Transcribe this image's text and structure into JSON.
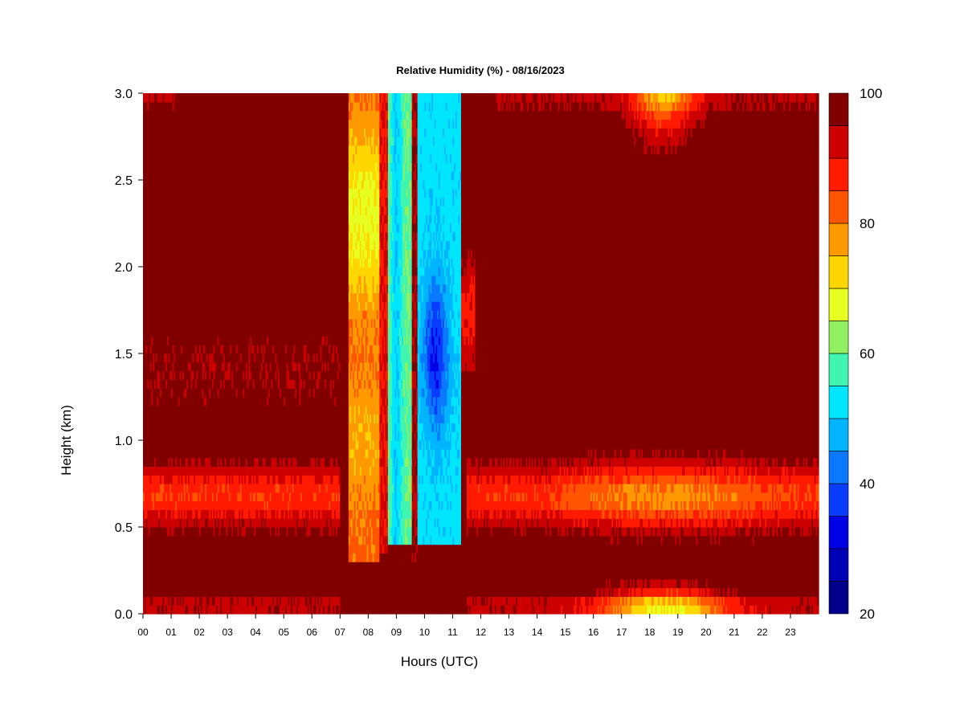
{
  "chart_data": {
    "type": "heatmap",
    "title": "Relative Humidity (%) - 08/16/2023",
    "xlabel": "Hours (UTC)",
    "ylabel": "Height (km)",
    "x_ticks": [
      "00",
      "01",
      "02",
      "03",
      "04",
      "05",
      "06",
      "07",
      "08",
      "09",
      "10",
      "11",
      "12",
      "13",
      "14",
      "15",
      "16",
      "17",
      "18",
      "19",
      "20",
      "21",
      "22",
      "23"
    ],
    "x_range": [
      0,
      24
    ],
    "y_ticks": [
      "0.0",
      "0.5",
      "1.0",
      "1.5",
      "2.0",
      "2.5",
      "3.0"
    ],
    "y_range": [
      0,
      3
    ],
    "colorbar": {
      "range": [
        20,
        100
      ],
      "step": 5,
      "ticks": [
        "20",
        "40",
        "60",
        "80",
        "100"
      ],
      "colors": [
        "#00008b",
        "#0000b5",
        "#0000e6",
        "#0a3cff",
        "#0a78ff",
        "#00b4ff",
        "#00e6ff",
        "#40f5b0",
        "#90f060",
        "#e6ff20",
        "#ffd700",
        "#ff9900",
        "#ff5500",
        "#ff1a00",
        "#cc0000",
        "#800000"
      ]
    },
    "grid": false,
    "legend": "right colorbar"
  }
}
